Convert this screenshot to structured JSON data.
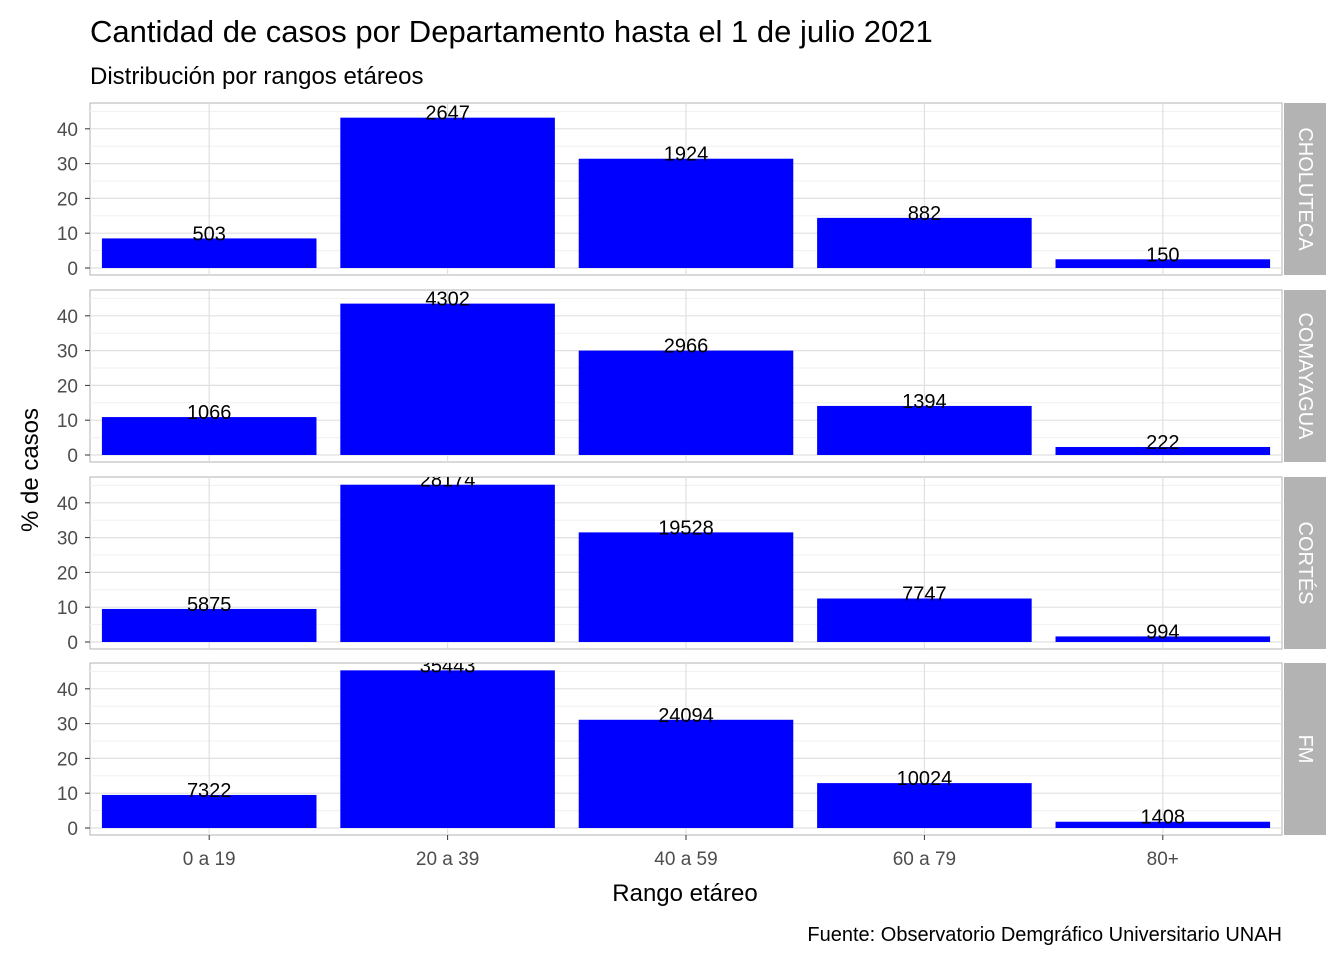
{
  "chart_data": {
    "type": "bar",
    "title": "Cantidad de casos por Departamento hasta el 1 de julio 2021",
    "subtitle": "Distribución por rangos etáreos",
    "xlabel": "Rango etáreo",
    "ylabel": "% de casos",
    "caption": "Fuente: Observatorio Demgráfico Universitario UNAH",
    "categories": [
      "0 a 19",
      "20 a 39",
      "40 a 59",
      "60 a 79",
      "80+"
    ],
    "yticks": [
      0,
      10,
      20,
      30,
      40
    ],
    "ylim": [
      0,
      46
    ],
    "grid": true,
    "bar_color": "#0000ff",
    "strip_color": "#b3b3b3",
    "facets": [
      {
        "name": "CHOLUTECA",
        "percent": [
          8.5,
          43.2,
          31.4,
          14.4,
          2.5
        ],
        "counts": [
          "503",
          "2647",
          "1924",
          "882",
          "150"
        ]
      },
      {
        "name": "COMAYAGUA",
        "percent": [
          10.9,
          43.5,
          30.0,
          14.1,
          2.3
        ],
        "counts": [
          "1066",
          "4302",
          "2966",
          "1394",
          "222"
        ]
      },
      {
        "name": "CORTÉS",
        "percent": [
          9.5,
          45.2,
          31.5,
          12.5,
          1.6
        ],
        "counts": [
          "5875",
          "28174",
          "19528",
          "7747",
          "994"
        ]
      },
      {
        "name": "FM",
        "percent": [
          9.5,
          45.3,
          31.1,
          12.9,
          1.8
        ],
        "counts": [
          "7322",
          "35443",
          "24094",
          "10024",
          "1408"
        ]
      }
    ]
  }
}
